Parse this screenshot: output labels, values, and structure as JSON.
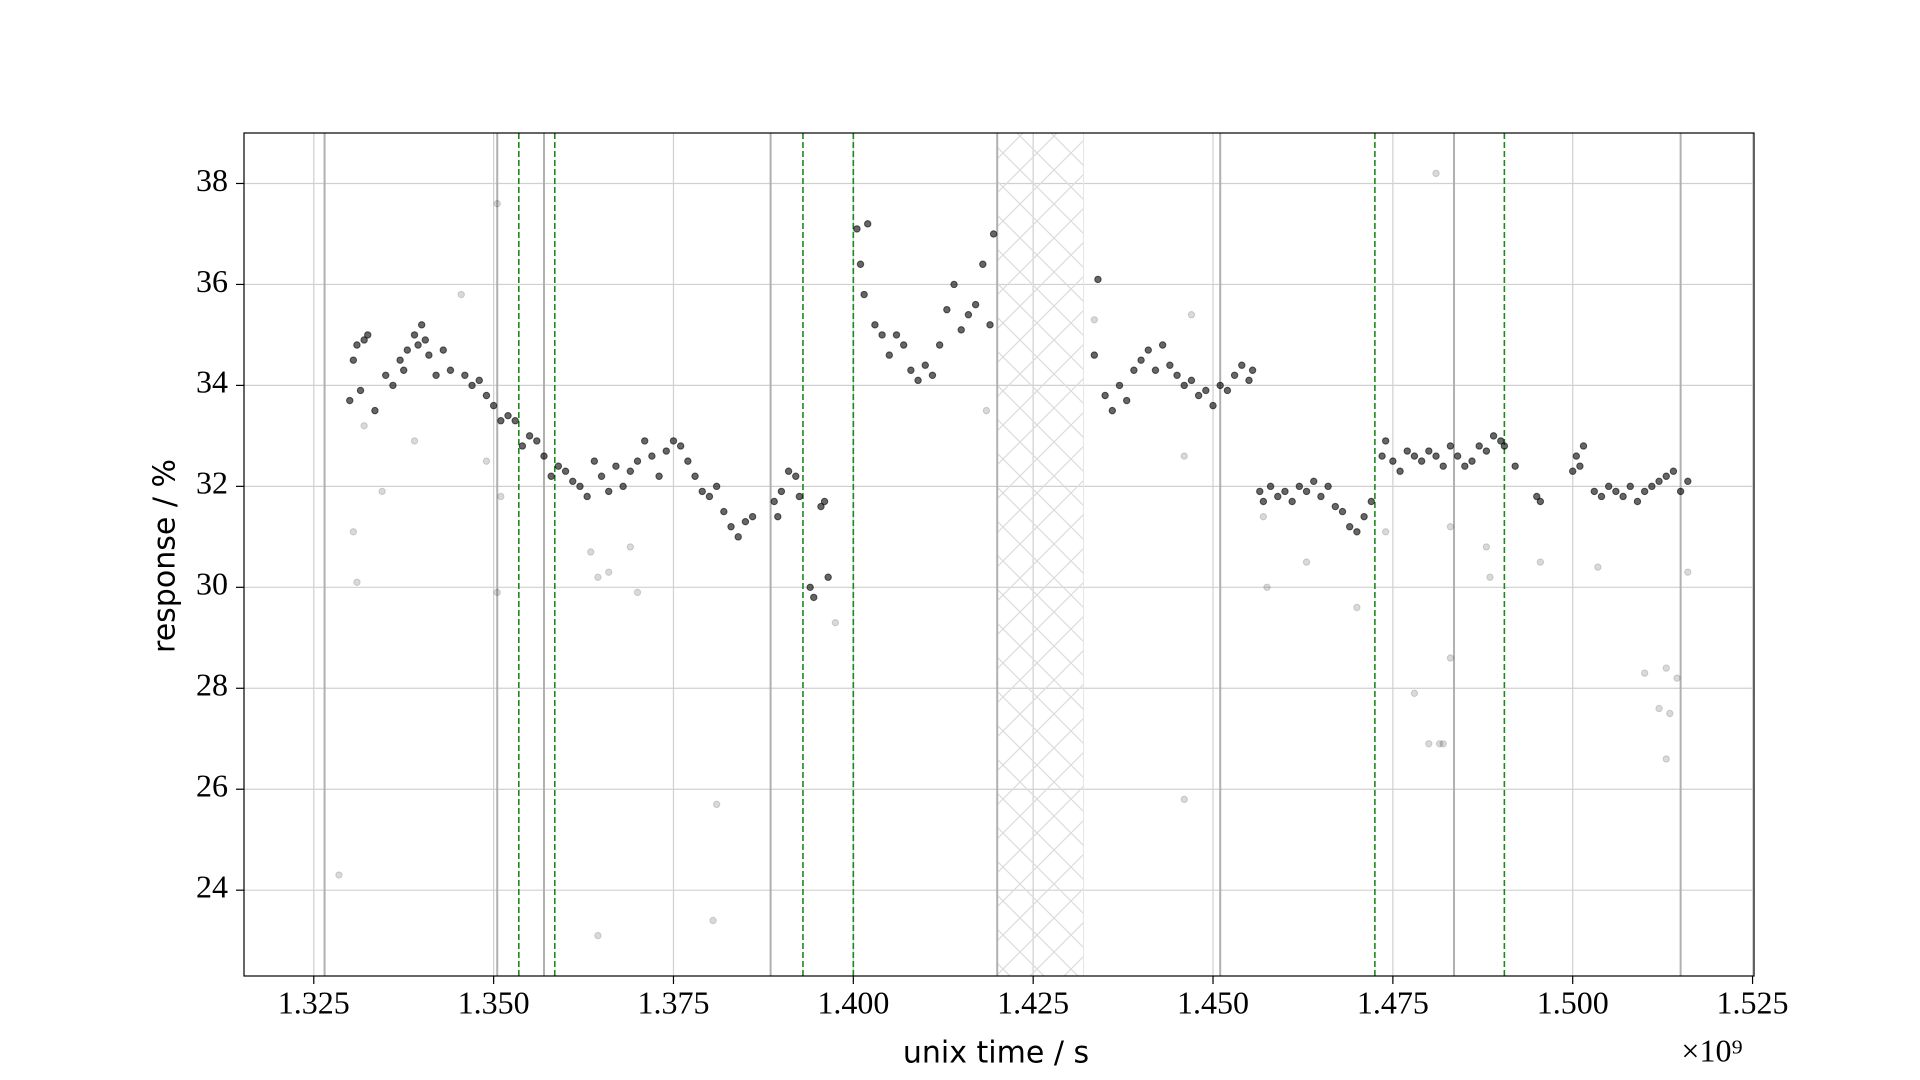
{
  "chart_data": {
    "type": "scatter",
    "xlabel": "unix time / s",
    "ylabel": "response / %",
    "x_offset_label": "×10⁹",
    "xlim": [
      1.3153,
      1.5252
    ],
    "ylim": [
      22.3,
      39.0
    ],
    "xticks": [
      1.325,
      {
        "value": 1.35,
        "label": "1.350"
      },
      1.375,
      {
        "value": 1.4,
        "label": "1.400"
      },
      1.425,
      {
        "value": 1.45,
        "label": "1.450"
      },
      1.475,
      {
        "value": 1.5,
        "label": "1.500"
      },
      1.525
    ],
    "yticks": [
      24,
      26,
      28,
      30,
      32,
      34,
      36,
      38
    ],
    "grid": true,
    "vlines": [
      1.3265,
      1.3505,
      1.357,
      1.3885,
      1.42,
      1.451,
      1.4835,
      1.515
    ],
    "vline_color": "#b0b0b0",
    "dashed_vlines": [
      1.3535,
      1.3585,
      1.393,
      1.4,
      1.4725,
      1.4905
    ],
    "dashed_vline_color": "#1a8a1a",
    "hatched_span": [
      1.42,
      1.432
    ],
    "series": [
      {
        "color": "#000000",
        "opacity": 0.6,
        "x": [
          1.33,
          1.3305,
          1.331,
          1.3315,
          1.332,
          1.3325,
          1.3335,
          1.335,
          1.336,
          1.337,
          1.3375,
          1.338,
          1.339,
          1.3395,
          1.34,
          1.3405,
          1.341,
          1.342,
          1.343,
          1.344,
          1.346,
          1.347,
          1.348,
          1.349,
          1.35,
          1.351,
          1.352,
          1.353,
          1.354,
          1.355,
          1.356,
          1.357,
          1.358,
          1.359,
          1.36,
          1.361,
          1.362,
          1.363,
          1.364,
          1.365,
          1.366,
          1.367,
          1.368,
          1.369,
          1.37,
          1.371,
          1.372,
          1.373,
          1.374,
          1.375,
          1.376,
          1.377,
          1.378,
          1.379,
          1.38,
          1.381,
          1.382,
          1.383,
          1.384,
          1.385,
          1.386,
          1.389,
          1.3895,
          1.39,
          1.391,
          1.392,
          1.3925,
          1.394,
          1.3945,
          1.3955,
          1.396,
          1.3965,
          1.4005,
          1.401,
          1.4015,
          1.402,
          1.403,
          1.404,
          1.405,
          1.406,
          1.407,
          1.408,
          1.409,
          1.41,
          1.411,
          1.412,
          1.413,
          1.414,
          1.415,
          1.416,
          1.417,
          1.418,
          1.419,
          1.4195,
          1.4335,
          1.434,
          1.435,
          1.436,
          1.437,
          1.438,
          1.439,
          1.44,
          1.441,
          1.442,
          1.443,
          1.444,
          1.445,
          1.446,
          1.447,
          1.448,
          1.449,
          1.45,
          1.451,
          1.452,
          1.453,
          1.454,
          1.455,
          1.4555,
          1.4565,
          1.457,
          1.458,
          1.459,
          1.46,
          1.461,
          1.462,
          1.463,
          1.464,
          1.465,
          1.466,
          1.467,
          1.468,
          1.469,
          1.47,
          1.471,
          1.472,
          1.4735,
          1.474,
          1.475,
          1.476,
          1.477,
          1.478,
          1.479,
          1.48,
          1.481,
          1.482,
          1.483,
          1.484,
          1.485,
          1.486,
          1.487,
          1.488,
          1.489,
          1.49,
          1.4905,
          1.492,
          1.495,
          1.4955,
          1.5,
          1.5005,
          1.501,
          1.5015,
          1.503,
          1.504,
          1.505,
          1.506,
          1.507,
          1.508,
          1.509,
          1.51,
          1.511,
          1.512,
          1.513,
          1.514,
          1.515,
          1.516
        ],
        "values": [
          33.7,
          34.5,
          34.8,
          33.9,
          34.9,
          35.0,
          33.5,
          34.2,
          34.0,
          34.5,
          34.3,
          34.7,
          35.0,
          34.8,
          35.2,
          34.9,
          34.6,
          34.2,
          34.7,
          34.3,
          34.2,
          34.0,
          34.1,
          33.8,
          33.6,
          33.3,
          33.4,
          33.3,
          32.8,
          33.0,
          32.9,
          32.6,
          32.2,
          32.4,
          32.3,
          32.1,
          32.0,
          31.8,
          32.5,
          32.2,
          31.9,
          32.4,
          32.0,
          32.3,
          32.5,
          32.9,
          32.6,
          32.2,
          32.7,
          32.9,
          32.8,
          32.5,
          32.2,
          31.9,
          31.8,
          32.0,
          31.5,
          31.2,
          31.0,
          31.3,
          31.4,
          31.7,
          31.4,
          31.9,
          32.3,
          32.2,
          31.8,
          30.0,
          29.8,
          31.6,
          31.7,
          30.2,
          37.1,
          36.4,
          35.8,
          37.2,
          35.2,
          35.0,
          34.6,
          35.0,
          34.8,
          34.3,
          34.1,
          34.4,
          34.2,
          34.8,
          35.5,
          36.0,
          35.1,
          35.4,
          35.6,
          36.4,
          35.2,
          37.0,
          34.6,
          36.1,
          33.8,
          33.5,
          34.0,
          33.7,
          34.3,
          34.5,
          34.7,
          34.3,
          34.8,
          34.4,
          34.2,
          34.0,
          34.1,
          33.8,
          33.9,
          33.6,
          34.0,
          33.9,
          34.2,
          34.4,
          34.1,
          34.3,
          31.9,
          31.7,
          32.0,
          31.8,
          31.9,
          31.7,
          32.0,
          31.9,
          32.1,
          31.8,
          32.0,
          31.6,
          31.5,
          31.2,
          31.1,
          31.4,
          31.7,
          32.6,
          32.9,
          32.5,
          32.3,
          32.7,
          32.6,
          32.5,
          32.7,
          32.6,
          32.4,
          32.8,
          32.6,
          32.4,
          32.5,
          32.8,
          32.7,
          33.0,
          32.9,
          32.8,
          32.4,
          31.8,
          31.7,
          32.3,
          32.6,
          32.4,
          32.8,
          31.9,
          31.8,
          32.0,
          31.9,
          31.8,
          32.0,
          31.7,
          31.9,
          32.0,
          32.1,
          32.2,
          32.3,
          31.9,
          32.1
        ]
      },
      {
        "color": "#000000",
        "opacity": 0.15,
        "x": [
          1.3285,
          1.3305,
          1.331,
          1.332,
          1.3345,
          1.339,
          1.3455,
          1.349,
          1.3505,
          1.351,
          1.3505,
          1.3635,
          1.3645,
          1.366,
          1.369,
          1.37,
          1.3645,
          1.3805,
          1.381,
          1.3975,
          1.4185,
          1.4335,
          1.446,
          1.447,
          1.446,
          1.457,
          1.4575,
          1.463,
          1.47,
          1.474,
          1.478,
          1.48,
          1.481,
          1.4815,
          1.482,
          1.483,
          1.483,
          1.488,
          1.4885,
          1.4955,
          1.5035,
          1.51,
          1.512,
          1.513,
          1.513,
          1.5135,
          1.5145,
          1.516
        ],
        "values": [
          24.3,
          31.1,
          30.1,
          33.2,
          31.9,
          32.9,
          35.8,
          32.5,
          37.6,
          31.8,
          29.9,
          30.7,
          30.2,
          30.3,
          30.8,
          29.9,
          23.1,
          23.4,
          25.7,
          29.3,
          33.5,
          35.3,
          32.6,
          35.4,
          25.8,
          31.4,
          30.0,
          30.5,
          29.6,
          31.1,
          27.9,
          26.9,
          38.2,
          26.9,
          26.9,
          28.6,
          31.2,
          30.8,
          30.2,
          30.5,
          30.4,
          28.3,
          27.6,
          26.6,
          28.4,
          27.5,
          28.2,
          30.3
        ]
      }
    ]
  }
}
